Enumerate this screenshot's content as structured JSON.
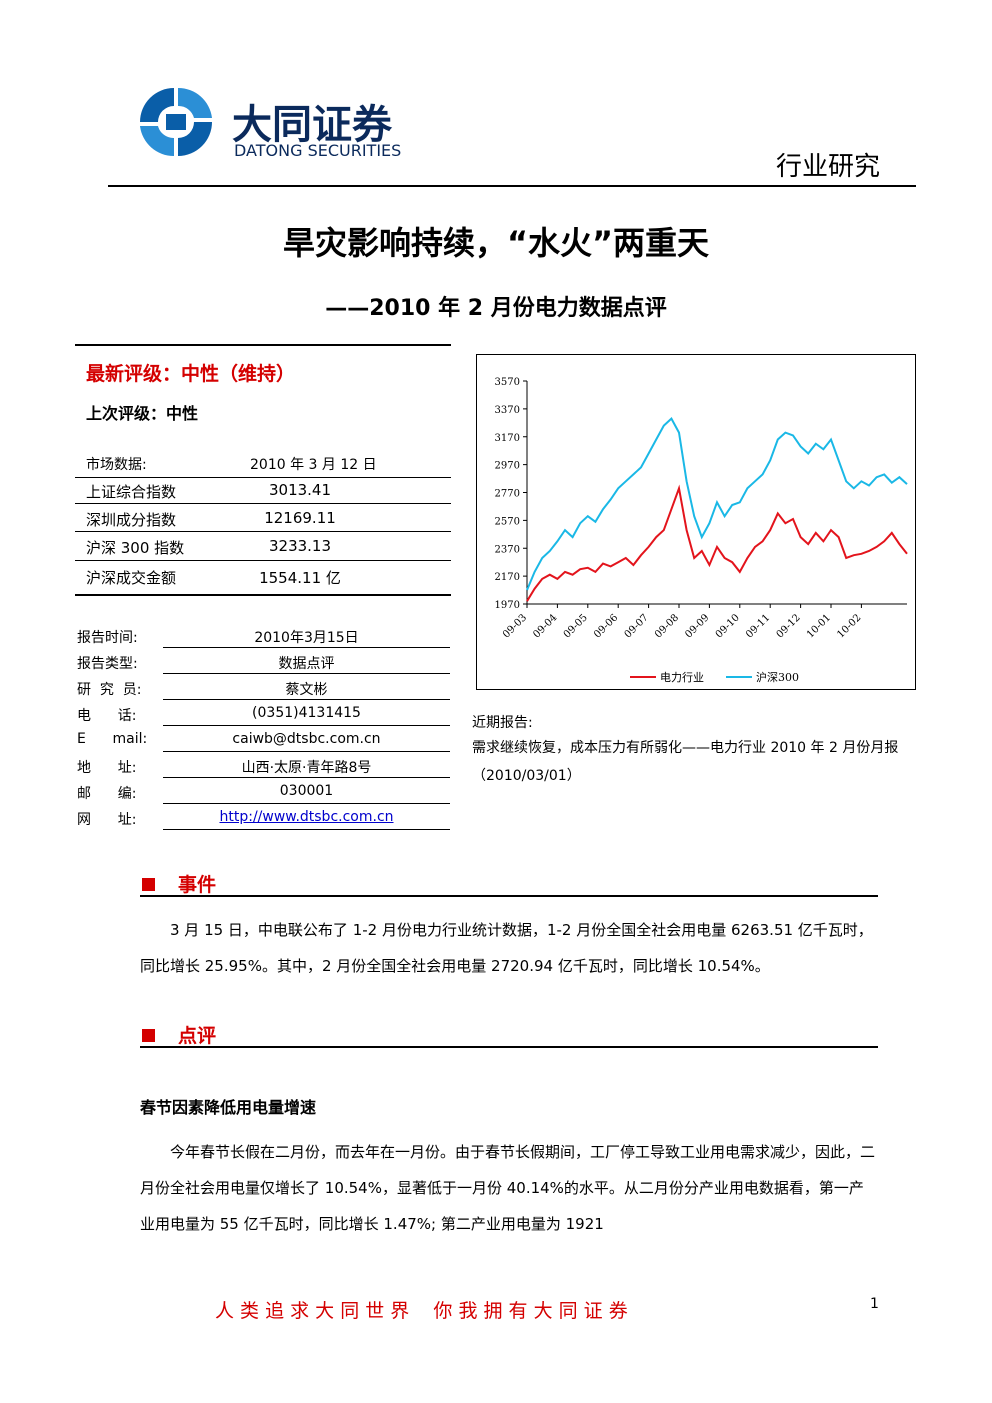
{
  "header": {
    "logo_cn": "大同证券",
    "logo_en": "DATONG SECURITIES",
    "section": "行业研究"
  },
  "title": "旱灾影响持续，“水火”两重天",
  "subtitle": "——2010 年 2 月份电力数据点评",
  "rating": {
    "latest": "最新评级：中性（维持）",
    "previous": "上次评级：中性"
  },
  "market": {
    "label": "市场数据:",
    "date": "2010 年 3 月 12 日",
    "rows": [
      [
        "上证综合指数",
        "3013.41"
      ],
      [
        "深圳成分指数",
        "12169.11"
      ],
      [
        "沪深 300 指数",
        "3233.13"
      ],
      [
        "沪深成交金额",
        "1554.11 亿"
      ]
    ]
  },
  "info": {
    "rows": [
      [
        "报告时间:",
        "2010年3月15日"
      ],
      [
        "报告类型:",
        "数据点评"
      ],
      [
        "研  究  员:",
        "蔡文彬"
      ],
      [
        "电      话:",
        "(0351)4131415"
      ],
      [
        "E      mail:",
        "caiwb@dtsbc.com.cn"
      ],
      [
        "地      址:",
        "山西·太原·青年路8号"
      ],
      [
        "邮      编:",
        "030001"
      ],
      [
        "网      址:",
        "http://www.dtsbc.com.cn"
      ]
    ]
  },
  "recent": {
    "heading": "近期报告:",
    "text": "需求继续恢复，成本压力有所弱化——电力行业 2010 年 2 月份月报（2010/03/01）"
  },
  "event": {
    "heading": "事件",
    "text": "3 月 15 日，中电联公布了 1-2 月份电力行业统计数据，1-2 月份全国全社会用电量 6263.51 亿千瓦时，同比增长 25.95%。其中，2 月份全国全社会用电量 2720.94 亿千瓦时，同比增长 10.54%。"
  },
  "review": {
    "heading": "点评",
    "subheading": "春节因素降低用电量增速",
    "text": "今年春节长假在二月份，而去年在一月份。由于春节长假期间，工厂停工导致工业用电需求减少，因此，二月份全社会用电量仅增长了 10.54%，显著低于一月份 40.14%的水平。从二月份分产业用电数据看，第一产业用电量为 55 亿千瓦时，同比增长 1.47%; 第二产业用电量为 1921"
  },
  "footer": {
    "slogan": "人 类 追 求 大 同 世 界    你 我 拥 有 大 同 证 券",
    "page": "1"
  },
  "chart_data": {
    "type": "line",
    "categories": [
      "09-03",
      null,
      null,
      null,
      "09-04",
      null,
      null,
      null,
      "09-05",
      null,
      null,
      null,
      "09-06",
      null,
      null,
      null,
      "09-07",
      null,
      null,
      null,
      "09-08",
      null,
      null,
      null,
      "09-09",
      null,
      null,
      null,
      "09-10",
      null,
      null,
      null,
      "09-11",
      null,
      null,
      null,
      "09-12",
      null,
      null,
      null,
      "10-01",
      null,
      null,
      null,
      "10-02",
      null,
      null,
      null,
      null,
      null,
      null
    ],
    "series": [
      {
        "name": "电力行业",
        "color": "#e3141c",
        "values": [
          1990,
          2080,
          2150,
          2180,
          2150,
          2200,
          2180,
          2220,
          2230,
          2200,
          2260,
          2240,
          2270,
          2300,
          2250,
          2320,
          2380,
          2450,
          2500,
          2650,
          2800,
          2500,
          2300,
          2350,
          2250,
          2380,
          2300,
          2270,
          2200,
          2300,
          2380,
          2420,
          2500,
          2620,
          2550,
          2580,
          2450,
          2400,
          2480,
          2420,
          2500,
          2450,
          2300,
          2320,
          2330,
          2350,
          2380,
          2420,
          2480,
          2400,
          2330
        ]
      },
      {
        "name": "沪深300",
        "color": "#1ab8e6",
        "values": [
          2070,
          2200,
          2300,
          2350,
          2420,
          2500,
          2450,
          2550,
          2600,
          2560,
          2650,
          2720,
          2800,
          2850,
          2900,
          2950,
          3050,
          3150,
          3250,
          3300,
          3200,
          2850,
          2600,
          2450,
          2550,
          2700,
          2600,
          2680,
          2700,
          2800,
          2850,
          2900,
          3000,
          3150,
          3200,
          3180,
          3100,
          3050,
          3120,
          3080,
          3150,
          3000,
          2850,
          2800,
          2850,
          2820,
          2880,
          2900,
          2840,
          2880,
          2830
        ]
      }
    ],
    "ylim": [
      1970,
      3570
    ],
    "yticks": [
      1970,
      2170,
      2370,
      2570,
      2770,
      2970,
      3170,
      3370,
      3570
    ],
    "legend": "bottom",
    "grid": false
  }
}
